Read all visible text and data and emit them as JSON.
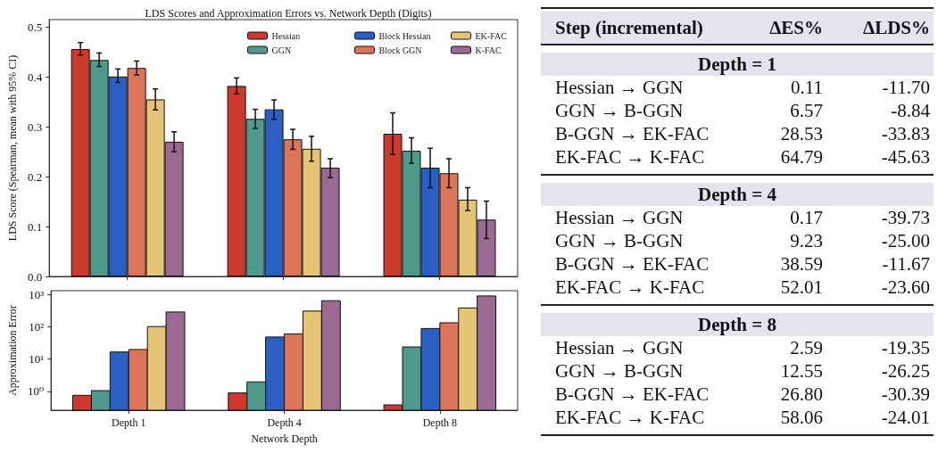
{
  "chart_data": [
    {
      "type": "bar",
      "title": "LDS Scores and Approximation Errors vs. Network Depth (Digits)",
      "ylabel": "LDS Score (Spearman, mean with 95% CI)",
      "categories": [
        null,
        null,
        null
      ],
      "ylim": [
        0,
        0.515
      ],
      "yticks": [
        {
          "value": 0,
          "label": "0.0"
        },
        0.1,
        0.2,
        0.3,
        0.4,
        0.5
      ],
      "tick_labels": "y",
      "legend": "top right",
      "grid": false,
      "series": [
        {
          "name": "Hessian",
          "color": "#cc3a2d",
          "values": [
            0.456,
            0.382,
            0.286
          ],
          "errors": [
            [
              0.444,
              0.469
            ],
            [
              0.366,
              0.398
            ],
            [
              0.245,
              0.328
            ]
          ]
        },
        {
          "name": "GGN",
          "color": "#4f9a8c",
          "values": [
            0.434,
            0.316,
            0.252
          ],
          "errors": [
            [
              0.421,
              0.448
            ],
            [
              0.297,
              0.335
            ],
            [
              0.227,
              0.278
            ]
          ]
        },
        {
          "name": "Block Hessian",
          "color": "#2c5fc4",
          "values": [
            0.401,
            0.335,
            0.218
          ],
          "errors": [
            [
              0.389,
              0.416
            ],
            [
              0.315,
              0.354
            ],
            [
              0.178,
              0.257
            ]
          ]
        },
        {
          "name": "Block GGN",
          "color": "#dc7459",
          "values": [
            0.418,
            0.275,
            0.207
          ],
          "errors": [
            [
              0.404,
              0.432
            ],
            [
              0.255,
              0.295
            ],
            [
              0.178,
              0.236
            ]
          ]
        },
        {
          "name": "EK-FAC",
          "color": "#e5c575",
          "values": [
            0.355,
            0.256,
            0.154
          ],
          "errors": [
            [
              0.334,
              0.376
            ],
            [
              0.231,
              0.281
            ],
            [
              0.132,
              0.178
            ]
          ]
        },
        {
          "name": "K-FAC",
          "color": "#9b6a92",
          "values": [
            0.27,
            0.218,
            0.114
          ],
          "errors": [
            [
              0.25,
              0.29
            ],
            [
              0.198,
              0.236
            ],
            [
              0.076,
              0.151
            ]
          ]
        }
      ]
    },
    {
      "type": "bar",
      "ylabel": "Approximation Error",
      "xlabel": "Network Depth",
      "categories": [
        "Depth 1",
        "Depth 4",
        "Depth 8"
      ],
      "log": "y",
      "ylim": [
        0.26,
        1300
      ],
      "yticks": [
        {
          "value": 1,
          "label": "10⁰"
        },
        {
          "value": 10,
          "label": "10¹"
        },
        {
          "value": 100,
          "label": "10²"
        },
        {
          "value": 1000,
          "label": "10³"
        }
      ],
      "grid": false,
      "legend": false,
      "series": [
        {
          "color": "#cc3a2d",
          "values": [
            0.75,
            0.89,
            0.38
          ]
        },
        {
          "color": "#4f9a8c",
          "values": [
            1.05,
            1.96,
            23.6
          ]
        },
        {
          "color": "#2c5fc4",
          "values": [
            16.5,
            48,
            88
          ]
        },
        {
          "color": "#dc7459",
          "values": [
            19.7,
            60,
            132
          ]
        },
        {
          "color": "#e5c575",
          "values": [
            101,
            304,
            380
          ]
        },
        {
          "color": "#9b6a92",
          "values": [
            285,
            638,
            894
          ]
        }
      ]
    },
    {
      "type": "other",
      "annotations": [
        "Step (incremental)",
        "ΔES%",
        "ΔLDS%",
        "Depth = 1",
        "Hessian → GGN",
        "0.11",
        "-11.70",
        "GGN → B-GGN",
        "6.57",
        "-8.84",
        "B-GGN → EK-FAC",
        "28.53",
        "-33.83",
        "EK-FAC → K-FAC",
        "64.79",
        "-45.63",
        "Depth = 4",
        "Hessian → GGN",
        "0.17",
        "-39.73",
        "GGN → B-GGN",
        "9.23",
        "-25.00",
        "B-GGN → EK-FAC",
        "38.59",
        "-11.67",
        "EK-FAC → K-FAC",
        "52.01",
        "-23.60",
        "Depth = 8",
        "Hessian → GGN",
        "2.59",
        "-19.35",
        "GGN → B-GGN",
        "12.55",
        "-26.25",
        "B-GGN → EK-FAC",
        "26.80",
        "-30.39",
        "EK-FAC → K-FAC",
        "58.06",
        "-24.01"
      ]
    }
  ]
}
